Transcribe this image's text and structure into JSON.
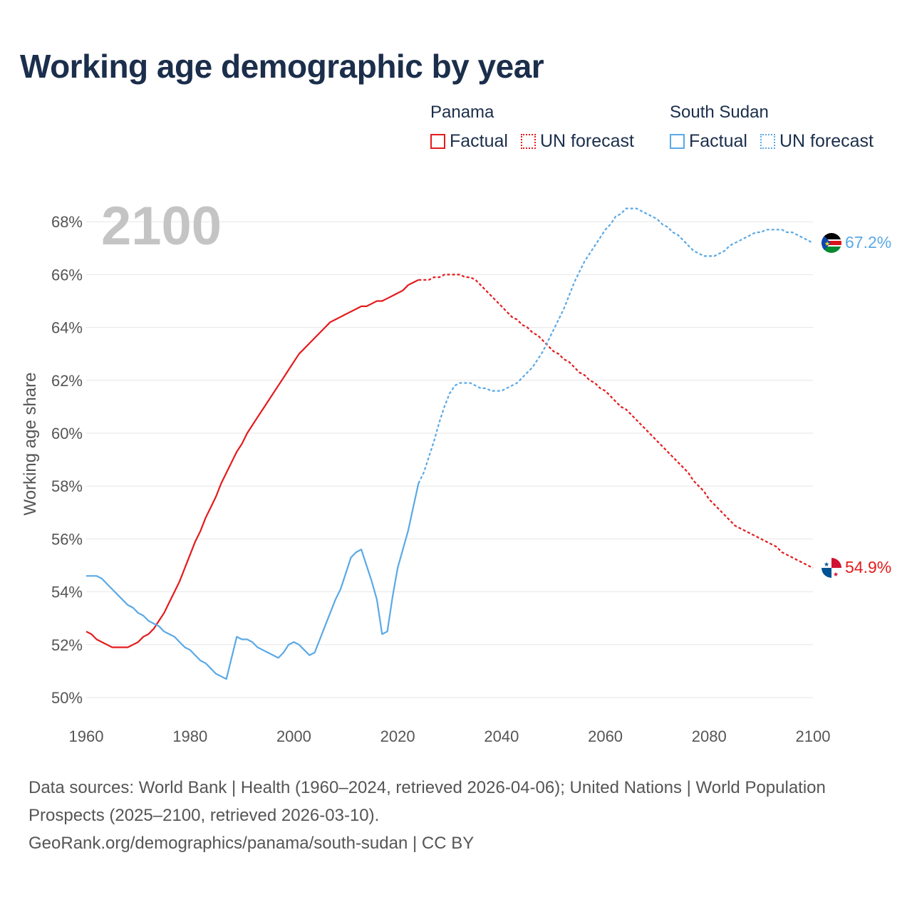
{
  "title": "Working age demographic by year",
  "legend": {
    "groups": [
      {
        "name": "Panama",
        "factual": "Factual",
        "forecast": "UN forecast",
        "color": "#e41a1c"
      },
      {
        "name": "South Sudan",
        "factual": "Factual",
        "forecast": "UN forecast",
        "color": "#5aa9e6"
      }
    ]
  },
  "year_watermark": "2100",
  "footer": {
    "line1": "Data sources: World Bank | Health (1960–2024, retrieved 2026-04-06); United Nations | World Population Prospects (2025–2100, retrieved 2026-03-10).",
    "line2": "GeoRank.org/demographics/panama/south-sudan | CC BY"
  },
  "chart_data": {
    "type": "line",
    "title": "Working age demographic by year",
    "xlabel": "",
    "ylabel": "Working age share",
    "xlim": [
      1960,
      2100
    ],
    "ylim": [
      49.5,
      69
    ],
    "x_ticks": [
      1960,
      1980,
      2000,
      2020,
      2040,
      2060,
      2080,
      2100
    ],
    "x_tick_labels": [
      "1960",
      "1980",
      "2000",
      "2020",
      "2040",
      "2060",
      "2080",
      "2100"
    ],
    "y_ticks": [
      50,
      52,
      54,
      56,
      58,
      60,
      62,
      64,
      66,
      68
    ],
    "y_tick_labels": [
      "50%",
      "52%",
      "54%",
      "56%",
      "58%",
      "60%",
      "62%",
      "64%",
      "66%",
      "68%"
    ],
    "grid": true,
    "series": [
      {
        "name": "Panama",
        "color": "#e41a1c",
        "end_label": "54.9%",
        "factual": [
          [
            1960,
            52.5
          ],
          [
            1961,
            52.4
          ],
          [
            1962,
            52.2
          ],
          [
            1963,
            52.1
          ],
          [
            1964,
            52.0
          ],
          [
            1965,
            51.9
          ],
          [
            1966,
            51.9
          ],
          [
            1967,
            51.9
          ],
          [
            1968,
            51.9
          ],
          [
            1969,
            52.0
          ],
          [
            1970,
            52.1
          ],
          [
            1971,
            52.3
          ],
          [
            1972,
            52.4
          ],
          [
            1973,
            52.6
          ],
          [
            1974,
            52.9
          ],
          [
            1975,
            53.2
          ],
          [
            1976,
            53.6
          ],
          [
            1977,
            54.0
          ],
          [
            1978,
            54.4
          ],
          [
            1979,
            54.9
          ],
          [
            1980,
            55.4
          ],
          [
            1981,
            55.9
          ],
          [
            1982,
            56.3
          ],
          [
            1983,
            56.8
          ],
          [
            1984,
            57.2
          ],
          [
            1985,
            57.6
          ],
          [
            1986,
            58.1
          ],
          [
            1987,
            58.5
          ],
          [
            1988,
            58.9
          ],
          [
            1989,
            59.3
          ],
          [
            1990,
            59.6
          ],
          [
            1991,
            60.0
          ],
          [
            1992,
            60.3
          ],
          [
            1993,
            60.6
          ],
          [
            1994,
            60.9
          ],
          [
            1995,
            61.2
          ],
          [
            1996,
            61.5
          ],
          [
            1997,
            61.8
          ],
          [
            1998,
            62.1
          ],
          [
            1999,
            62.4
          ],
          [
            2000,
            62.7
          ],
          [
            2001,
            63.0
          ],
          [
            2002,
            63.2
          ],
          [
            2003,
            63.4
          ],
          [
            2004,
            63.6
          ],
          [
            2005,
            63.8
          ],
          [
            2006,
            64.0
          ],
          [
            2007,
            64.2
          ],
          [
            2008,
            64.3
          ],
          [
            2009,
            64.4
          ],
          [
            2010,
            64.5
          ],
          [
            2011,
            64.6
          ],
          [
            2012,
            64.7
          ],
          [
            2013,
            64.8
          ],
          [
            2014,
            64.8
          ],
          [
            2015,
            64.9
          ],
          [
            2016,
            65.0
          ],
          [
            2017,
            65.0
          ],
          [
            2018,
            65.1
          ],
          [
            2019,
            65.2
          ],
          [
            2020,
            65.3
          ],
          [
            2021,
            65.4
          ],
          [
            2022,
            65.6
          ],
          [
            2023,
            65.7
          ],
          [
            2024,
            65.8
          ]
        ],
        "forecast": [
          [
            2024,
            65.8
          ],
          [
            2025,
            65.8
          ],
          [
            2026,
            65.8
          ],
          [
            2027,
            65.9
          ],
          [
            2028,
            65.9
          ],
          [
            2029,
            66.0
          ],
          [
            2030,
            66.0
          ],
          [
            2031,
            66.0
          ],
          [
            2032,
            66.0
          ],
          [
            2033,
            65.9
          ],
          [
            2034,
            65.9
          ],
          [
            2035,
            65.8
          ],
          [
            2036,
            65.6
          ],
          [
            2037,
            65.4
          ],
          [
            2038,
            65.2
          ],
          [
            2039,
            65.0
          ],
          [
            2040,
            64.8
          ],
          [
            2041,
            64.6
          ],
          [
            2042,
            64.4
          ],
          [
            2043,
            64.3
          ],
          [
            2044,
            64.1
          ],
          [
            2045,
            64.0
          ],
          [
            2046,
            63.8
          ],
          [
            2047,
            63.7
          ],
          [
            2048,
            63.5
          ],
          [
            2049,
            63.3
          ],
          [
            2050,
            63.1
          ],
          [
            2051,
            63.0
          ],
          [
            2052,
            62.8
          ],
          [
            2053,
            62.7
          ],
          [
            2054,
            62.5
          ],
          [
            2055,
            62.3
          ],
          [
            2056,
            62.2
          ],
          [
            2057,
            62.0
          ],
          [
            2058,
            61.9
          ],
          [
            2059,
            61.7
          ],
          [
            2060,
            61.6
          ],
          [
            2061,
            61.4
          ],
          [
            2062,
            61.2
          ],
          [
            2063,
            61.0
          ],
          [
            2064,
            60.9
          ],
          [
            2065,
            60.7
          ],
          [
            2066,
            60.5
          ],
          [
            2067,
            60.3
          ],
          [
            2068,
            60.1
          ],
          [
            2069,
            59.9
          ],
          [
            2070,
            59.7
          ],
          [
            2071,
            59.5
          ],
          [
            2072,
            59.3
          ],
          [
            2073,
            59.1
          ],
          [
            2074,
            58.9
          ],
          [
            2075,
            58.7
          ],
          [
            2076,
            58.5
          ],
          [
            2077,
            58.2
          ],
          [
            2078,
            58.0
          ],
          [
            2079,
            57.8
          ],
          [
            2080,
            57.5
          ],
          [
            2081,
            57.3
          ],
          [
            2082,
            57.1
          ],
          [
            2083,
            56.9
          ],
          [
            2084,
            56.7
          ],
          [
            2085,
            56.5
          ],
          [
            2086,
            56.4
          ],
          [
            2087,
            56.3
          ],
          [
            2088,
            56.2
          ],
          [
            2089,
            56.1
          ],
          [
            2090,
            56.0
          ],
          [
            2091,
            55.9
          ],
          [
            2092,
            55.8
          ],
          [
            2093,
            55.7
          ],
          [
            2094,
            55.5
          ],
          [
            2095,
            55.4
          ],
          [
            2096,
            55.3
          ],
          [
            2097,
            55.2
          ],
          [
            2098,
            55.1
          ],
          [
            2099,
            55.0
          ],
          [
            2100,
            54.9
          ]
        ]
      },
      {
        "name": "South Sudan",
        "color": "#5aa9e6",
        "end_label": "67.2%",
        "factual": [
          [
            1960,
            54.6
          ],
          [
            1961,
            54.6
          ],
          [
            1962,
            54.6
          ],
          [
            1963,
            54.5
          ],
          [
            1964,
            54.3
          ],
          [
            1965,
            54.1
          ],
          [
            1966,
            53.9
          ],
          [
            1967,
            53.7
          ],
          [
            1968,
            53.5
          ],
          [
            1969,
            53.4
          ],
          [
            1970,
            53.2
          ],
          [
            1971,
            53.1
          ],
          [
            1972,
            52.9
          ],
          [
            1973,
            52.8
          ],
          [
            1974,
            52.7
          ],
          [
            1975,
            52.5
          ],
          [
            1976,
            52.4
          ],
          [
            1977,
            52.3
          ],
          [
            1978,
            52.1
          ],
          [
            1979,
            51.9
          ],
          [
            1980,
            51.8
          ],
          [
            1981,
            51.6
          ],
          [
            1982,
            51.4
          ],
          [
            1983,
            51.3
          ],
          [
            1984,
            51.1
          ],
          [
            1985,
            50.9
          ],
          [
            1986,
            50.8
          ],
          [
            1987,
            50.7
          ],
          [
            1988,
            51.5
          ],
          [
            1989,
            52.3
          ],
          [
            1990,
            52.2
          ],
          [
            1991,
            52.2
          ],
          [
            1992,
            52.1
          ],
          [
            1993,
            51.9
          ],
          [
            1994,
            51.8
          ],
          [
            1995,
            51.7
          ],
          [
            1996,
            51.6
          ],
          [
            1997,
            51.5
          ],
          [
            1998,
            51.7
          ],
          [
            1999,
            52.0
          ],
          [
            2000,
            52.1
          ],
          [
            2001,
            52.0
          ],
          [
            2002,
            51.8
          ],
          [
            2003,
            51.6
          ],
          [
            2004,
            51.7
          ],
          [
            2005,
            52.2
          ],
          [
            2006,
            52.7
          ],
          [
            2007,
            53.2
          ],
          [
            2008,
            53.7
          ],
          [
            2009,
            54.1
          ],
          [
            2010,
            54.7
          ],
          [
            2011,
            55.3
          ],
          [
            2012,
            55.5
          ],
          [
            2013,
            55.6
          ],
          [
            2014,
            55.0
          ],
          [
            2015,
            54.4
          ],
          [
            2016,
            53.7
          ],
          [
            2017,
            52.4
          ],
          [
            2018,
            52.5
          ],
          [
            2019,
            53.8
          ],
          [
            2020,
            54.9
          ],
          [
            2021,
            55.6
          ],
          [
            2022,
            56.3
          ],
          [
            2023,
            57.2
          ],
          [
            2024,
            58.1
          ]
        ],
        "forecast": [
          [
            2024,
            58.1
          ],
          [
            2025,
            58.5
          ],
          [
            2026,
            59.1
          ],
          [
            2027,
            59.7
          ],
          [
            2028,
            60.4
          ],
          [
            2029,
            61.0
          ],
          [
            2030,
            61.5
          ],
          [
            2031,
            61.8
          ],
          [
            2032,
            61.9
          ],
          [
            2033,
            61.9
          ],
          [
            2034,
            61.9
          ],
          [
            2035,
            61.8
          ],
          [
            2036,
            61.7
          ],
          [
            2037,
            61.7
          ],
          [
            2038,
            61.6
          ],
          [
            2039,
            61.6
          ],
          [
            2040,
            61.6
          ],
          [
            2041,
            61.7
          ],
          [
            2042,
            61.8
          ],
          [
            2043,
            61.9
          ],
          [
            2044,
            62.1
          ],
          [
            2045,
            62.3
          ],
          [
            2046,
            62.5
          ],
          [
            2047,
            62.8
          ],
          [
            2048,
            63.1
          ],
          [
            2049,
            63.5
          ],
          [
            2050,
            63.9
          ],
          [
            2051,
            64.3
          ],
          [
            2052,
            64.7
          ],
          [
            2053,
            65.2
          ],
          [
            2054,
            65.7
          ],
          [
            2055,
            66.1
          ],
          [
            2056,
            66.5
          ],
          [
            2057,
            66.8
          ],
          [
            2058,
            67.1
          ],
          [
            2059,
            67.4
          ],
          [
            2060,
            67.7
          ],
          [
            2061,
            67.9
          ],
          [
            2062,
            68.2
          ],
          [
            2063,
            68.3
          ],
          [
            2064,
            68.5
          ],
          [
            2065,
            68.5
          ],
          [
            2066,
            68.5
          ],
          [
            2067,
            68.4
          ],
          [
            2068,
            68.3
          ],
          [
            2069,
            68.2
          ],
          [
            2070,
            68.1
          ],
          [
            2071,
            67.9
          ],
          [
            2072,
            67.8
          ],
          [
            2073,
            67.6
          ],
          [
            2074,
            67.5
          ],
          [
            2075,
            67.3
          ],
          [
            2076,
            67.1
          ],
          [
            2077,
            66.9
          ],
          [
            2078,
            66.8
          ],
          [
            2079,
            66.7
          ],
          [
            2080,
            66.7
          ],
          [
            2081,
            66.7
          ],
          [
            2082,
            66.8
          ],
          [
            2083,
            66.9
          ],
          [
            2084,
            67.1
          ],
          [
            2085,
            67.2
          ],
          [
            2086,
            67.3
          ],
          [
            2087,
            67.4
          ],
          [
            2088,
            67.5
          ],
          [
            2089,
            67.6
          ],
          [
            2090,
            67.6
          ],
          [
            2091,
            67.7
          ],
          [
            2092,
            67.7
          ],
          [
            2093,
            67.7
          ],
          [
            2094,
            67.7
          ],
          [
            2095,
            67.6
          ],
          [
            2096,
            67.6
          ],
          [
            2097,
            67.5
          ],
          [
            2098,
            67.4
          ],
          [
            2099,
            67.3
          ],
          [
            2100,
            67.2
          ]
        ]
      }
    ]
  }
}
